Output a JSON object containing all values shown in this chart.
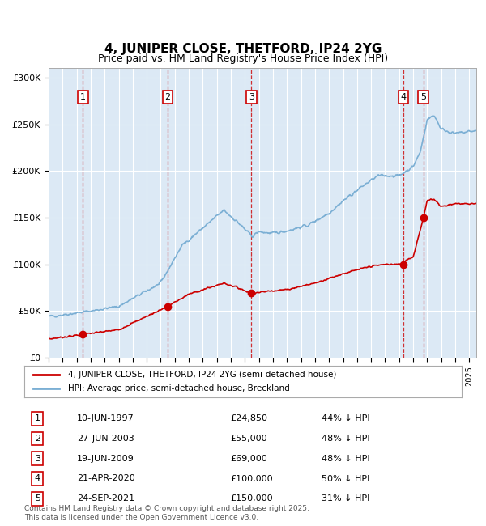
{
  "title": "4, JUNIPER CLOSE, THETFORD, IP24 2YG",
  "subtitle": "Price paid vs. HM Land Registry's House Price Index (HPI)",
  "background_color": "#dce9f5",
  "plot_bg_color": "#dce9f5",
  "hpi_color": "#7bafd4",
  "price_color": "#cc0000",
  "sale_marker_color": "#cc0000",
  "vline_color": "#cc0000",
  "grid_color": "#ffffff",
  "ylim": [
    0,
    310000
  ],
  "xlim_start": 1995.0,
  "xlim_end": 2025.5,
  "sales": [
    {
      "num": 1,
      "date_label": "10-JUN-1997",
      "year": 1997.44,
      "price": 24850,
      "pct": "44%",
      "dir": "↓"
    },
    {
      "num": 2,
      "date_label": "27-JUN-2003",
      "year": 2003.49,
      "price": 55000,
      "pct": "48%",
      "dir": "↓"
    },
    {
      "num": 3,
      "date_label": "19-JUN-2009",
      "year": 2009.47,
      "price": 69000,
      "pct": "48%",
      "dir": "↓"
    },
    {
      "num": 4,
      "date_label": "21-APR-2020",
      "year": 2020.31,
      "price": 100000,
      "pct": "50%",
      "dir": "↓"
    },
    {
      "num": 5,
      "date_label": "24-SEP-2021",
      "year": 2021.73,
      "price": 150000,
      "pct": "31%",
      "dir": "↓"
    }
  ],
  "legend_line1": "4, JUNIPER CLOSE, THETFORD, IP24 2YG (semi-detached house)",
  "legend_line2": "HPI: Average price, semi-detached house, Breckland",
  "footer": "Contains HM Land Registry data © Crown copyright and database right 2025.\nThis data is licensed under the Open Government Licence v3.0.",
  "yticks": [
    0,
    50000,
    100000,
    150000,
    200000,
    250000,
    300000
  ],
  "ytick_labels": [
    "£0",
    "£50K",
    "£100K",
    "£150K",
    "£200K",
    "£250K",
    "£300K"
  ]
}
